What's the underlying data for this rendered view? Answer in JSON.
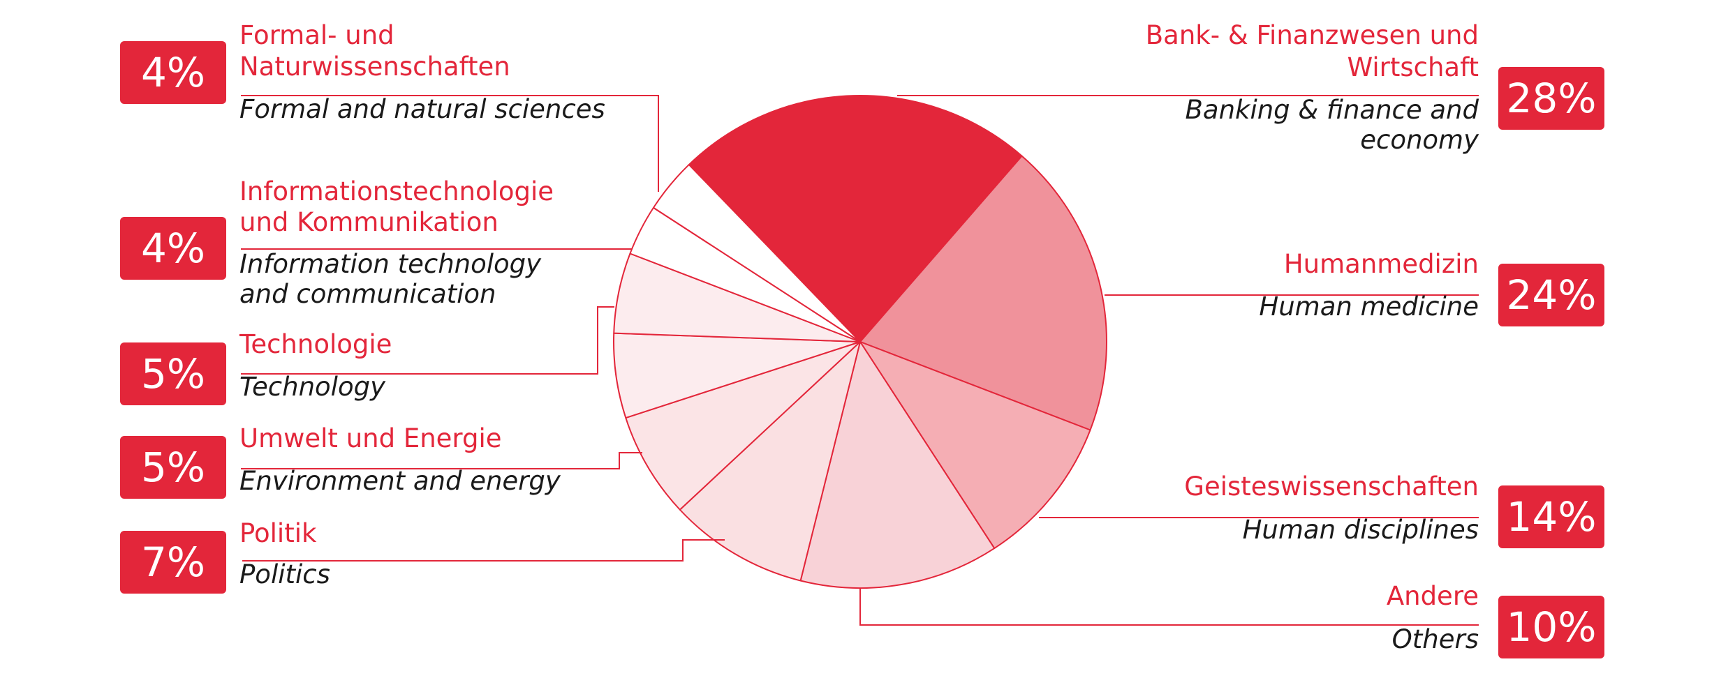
{
  "chart_data": {
    "type": "pie",
    "colors": {
      "accent": "#e3263a",
      "slices": [
        "#e3263a",
        "#f0929b",
        "#f5aeb4",
        "#f8d2d7",
        "#fae0e2",
        "#fbe4e6",
        "#fcecee",
        "#fcecee",
        "#ffffff",
        "#ffffff"
      ]
    },
    "slices": [
      {
        "id": "banking",
        "percent_label": "28%",
        "value": 28,
        "label_de": [
          "Bank- & Finanzwesen und",
          "Wirtschaft"
        ],
        "label_en": [
          "Banking & finance and",
          "economy"
        ]
      },
      {
        "id": "medicine",
        "percent_label": "24%",
        "value": 24,
        "label_de": [
          "Humanmedizin"
        ],
        "label_en": [
          "Human medicine"
        ]
      },
      {
        "id": "humanities",
        "percent_label": "14%",
        "value": 14,
        "label_de": [
          "Geisteswissenschaften"
        ],
        "label_en": [
          "Human disciplines"
        ]
      },
      {
        "id": "others",
        "percent_label": "10%",
        "value": 10,
        "label_de": [
          "Andere"
        ],
        "label_en": [
          "Others"
        ]
      },
      {
        "id": "politics",
        "percent_label": "7%",
        "value": 7,
        "label_de": [
          "Politik"
        ],
        "label_en": [
          "Politics"
        ]
      },
      {
        "id": "environment",
        "percent_label": "5%",
        "value": 5,
        "label_de": [
          "Umwelt und Energie"
        ],
        "label_en": [
          "Environment and energy"
        ]
      },
      {
        "id": "technology",
        "percent_label": "5%",
        "value": 5,
        "label_de": [
          "Technologie"
        ],
        "label_en": [
          "Technology"
        ]
      },
      {
        "id": "it",
        "percent_label": "4%",
        "value": 4,
        "label_de": [
          "Informationstechnologie",
          "und Kommunikation"
        ],
        "label_en": [
          "Information technology",
          "and communication"
        ]
      },
      {
        "id": "sciences",
        "percent_label": "4%",
        "value": 4,
        "label_de": [
          "Formal- und",
          "Naturwissenschaften"
        ],
        "label_en": [
          "Formal and natural sciences"
        ]
      }
    ]
  }
}
